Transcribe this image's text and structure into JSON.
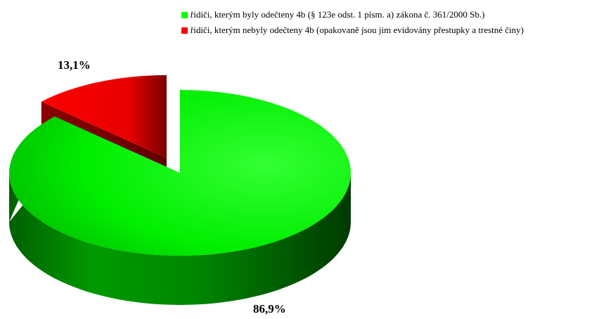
{
  "chart_data": {
    "type": "pie",
    "title": "",
    "categories": [
      "řidiči, kterým byly odečteny 4b (§ 123e odst. 1 písm. a) zákona č. 361/2000 Sb.)",
      "řidiči, kterým nebyly odečteny 4b (opakovaně jsou jim evidovány přestupky a trestné činy)"
    ],
    "values": [
      86.9,
      13.1
    ],
    "data_labels": [
      "86,9%",
      "13,1%"
    ],
    "colors": [
      "#00FF00",
      "#FF0000"
    ],
    "exploded": true,
    "three_d": true,
    "legend_position": "top-right"
  }
}
